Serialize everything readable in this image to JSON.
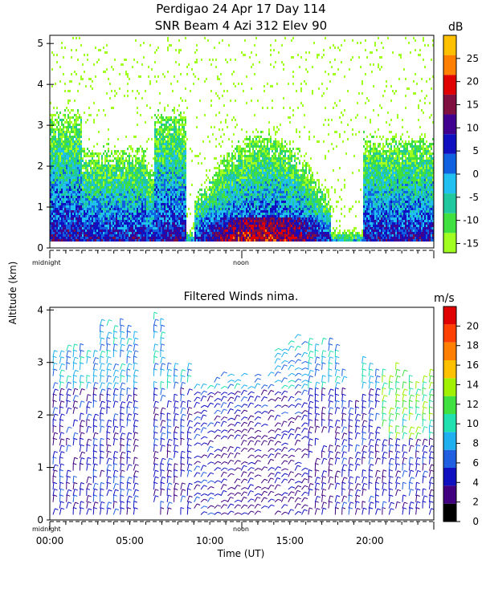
{
  "header": {
    "line1": "Perdigao  24 Apr 17 Day 114",
    "line2": "SNR Beam 4 Azi 312 Elev 90"
  },
  "colors": {
    "snr_scale": [
      "#a0ff20",
      "#40e040",
      "#20c8a0",
      "#20c0f0",
      "#1060e0",
      "#1010c0",
      "#400090",
      "#801040",
      "#e00000",
      "#ff8000",
      "#ffc000"
    ],
    "wind_scale": [
      "#000000",
      "#400080",
      "#1010c0",
      "#2060e0",
      "#20b0f0",
      "#20e0b0",
      "#40e040",
      "#a0f000",
      "#ffc000",
      "#ff8000",
      "#ff4000",
      "#e00000"
    ]
  },
  "chart_data": [
    {
      "type": "heatmap",
      "title": "",
      "ylabel": "Altitude (km)",
      "ylim": [
        0,
        5.2
      ],
      "yticks": [
        "0",
        "1",
        "2",
        "3",
        "4",
        "5"
      ],
      "xlim_hours": [
        0,
        24
      ],
      "x_markers": [
        "midnight",
        "noon"
      ],
      "colorbar": {
        "unit": "dB",
        "ticks": [
          "-15",
          "-10",
          "-5",
          "0",
          "5",
          "10",
          "15",
          "20",
          "25"
        ],
        "range": [
          -17,
          30
        ]
      }
    },
    {
      "type": "scatter",
      "title": "Filtered Winds nima.",
      "ylabel": "",
      "xlabel": "Time (UT)",
      "ylim": [
        0,
        4
      ],
      "yticks": [
        "0",
        "1",
        "2",
        "3",
        "4"
      ],
      "xticks": [
        "00:00",
        "05:00",
        "10:00",
        "15:00",
        "20:00"
      ],
      "xtick_hours": [
        0,
        5,
        10,
        15,
        20
      ],
      "xlim_hours": [
        0,
        24
      ],
      "x_markers": [
        "midnight",
        "noon"
      ],
      "colorbar": {
        "unit": "m/s",
        "ticks": [
          "0",
          "2",
          "4",
          "6",
          "8",
          "10",
          "12",
          "14",
          "16",
          "18",
          "20"
        ],
        "range": [
          0,
          22
        ]
      }
    }
  ]
}
